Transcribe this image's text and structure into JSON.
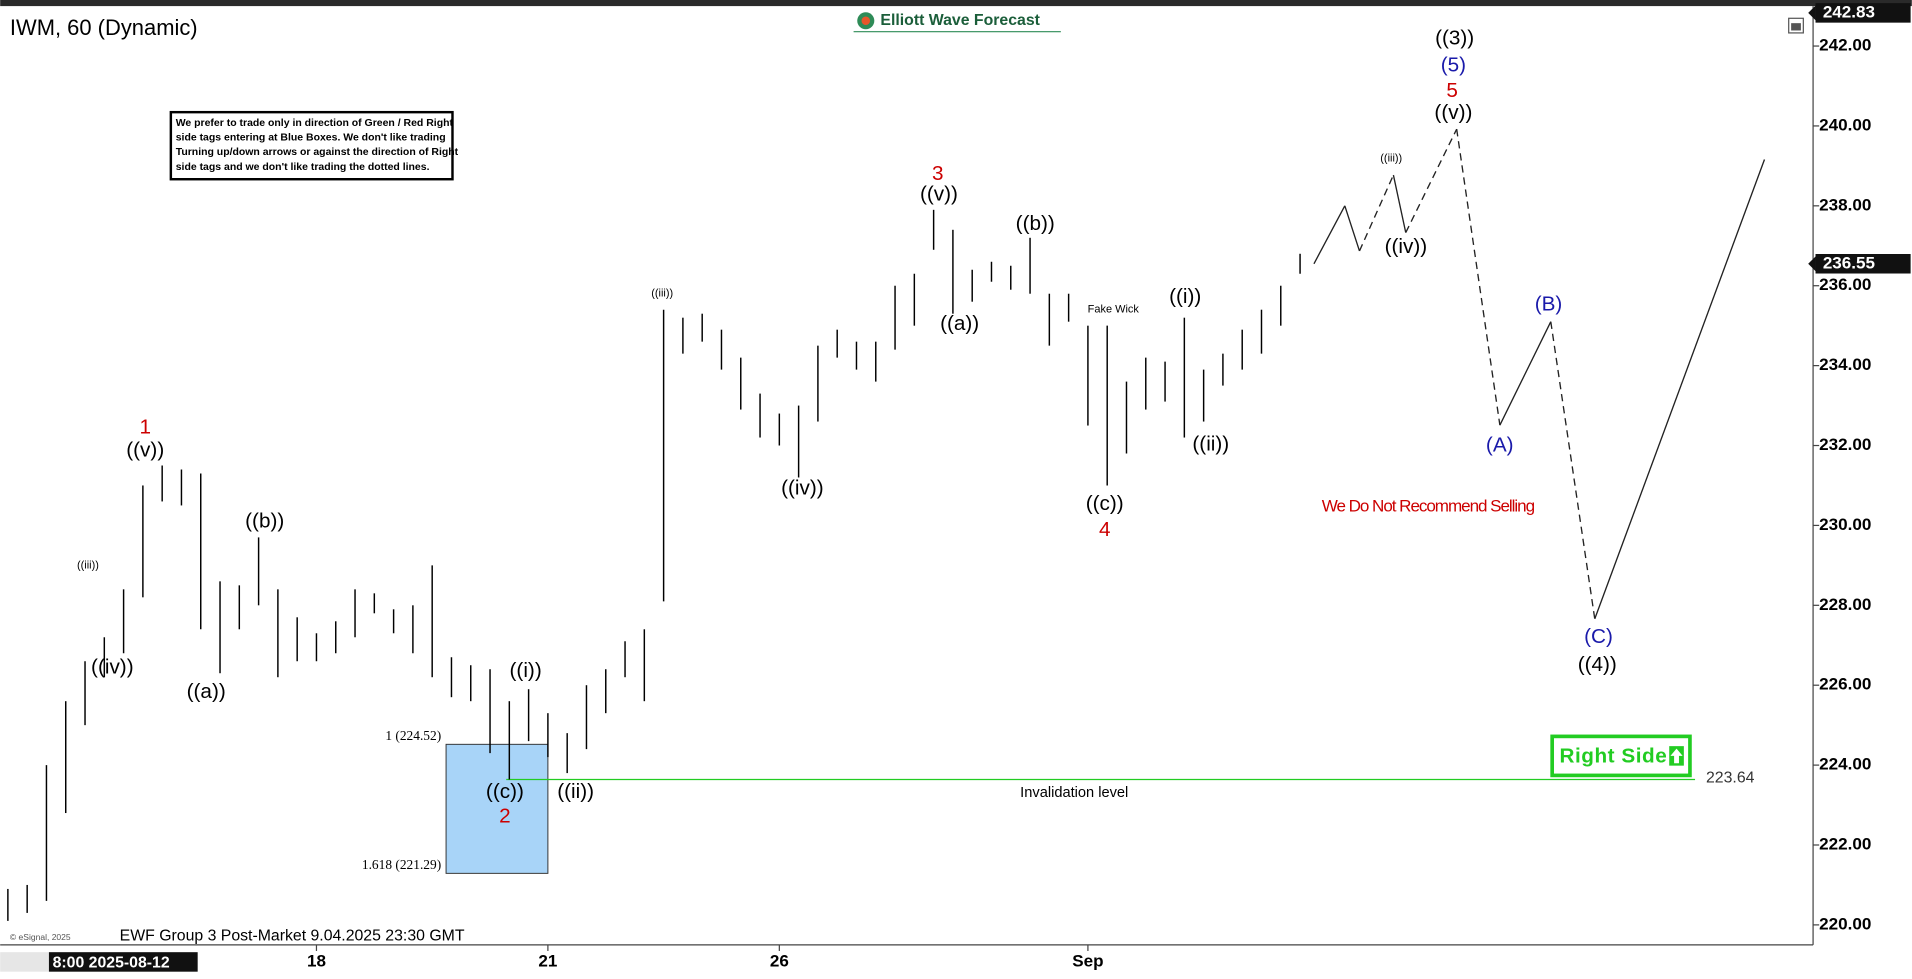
{
  "chart_data": {
    "type": "ohlc",
    "title": "IWM, 60 (Dynamic)",
    "brand": "Elliott Wave Forecast",
    "footer": "EWF Group 3 Post-Market 9.04.2025 23:30 GMT",
    "copyright": "© eSignal, 2025",
    "start_label": "8:00 2025-08-12",
    "note": [
      "We prefer to trade only in direction of Green / Red Right",
      "side tags entering at Blue Boxes. We don't like trading",
      "Turning up/down arrows or against the direction of Right",
      "side tags and we don't like trading the dotted lines."
    ],
    "color": "#000000",
    "x": [
      0,
      0.25,
      0.5,
      0.75,
      1,
      1.25,
      1.5,
      1.75,
      2,
      2.25,
      2.5,
      2.75,
      3,
      3.25,
      3.5,
      3.75,
      4,
      4.25,
      4.5,
      4.75,
      5,
      5.25,
      5.5,
      5.75,
      6,
      6.25,
      6.5,
      6.75,
      7,
      7.25,
      7.5,
      7.75,
      8,
      8.25,
      8.5,
      8.75,
      9,
      9.25,
      9.5,
      9.75,
      10,
      10.25,
      10.5,
      10.75,
      11,
      11.25,
      11.5,
      11.75,
      12,
      12.25,
      12.5,
      12.75,
      13,
      13.25,
      13.5,
      13.75,
      14,
      14.25,
      14.5,
      14.75,
      15,
      15.25,
      15.5,
      15.75,
      16,
      16.25,
      16.5,
      16.75
    ],
    "highs": [
      220.9,
      221.0,
      224.0,
      225.6,
      226.6,
      227.2,
      228.4,
      231.0,
      231.5,
      231.4,
      231.3,
      228.6,
      228.5,
      229.7,
      228.4,
      227.7,
      227.3,
      227.6,
      228.4,
      228.3,
      227.9,
      228.0,
      229.0,
      226.7,
      226.5,
      226.4,
      225.6,
      225.9,
      225.3,
      224.8,
      226.0,
      226.4,
      227.1,
      227.4,
      235.4,
      235.2,
      235.3,
      234.9,
      234.2,
      233.3,
      232.8,
      233.0,
      234.5,
      234.9,
      234.6,
      234.6,
      236.0,
      236.3,
      237.9,
      237.4,
      236.4,
      236.6,
      236.5,
      237.2,
      235.8,
      235.8,
      235.0,
      235.0,
      233.6,
      234.2,
      234.1,
      235.2,
      233.9,
      234.3,
      234.9,
      235.4,
      236.0,
      236.8
    ],
    "lows": [
      220.1,
      220.3,
      220.6,
      222.8,
      225.0,
      226.2,
      226.8,
      228.2,
      230.6,
      230.5,
      227.4,
      226.3,
      227.4,
      228.0,
      226.2,
      226.6,
      226.6,
      226.8,
      227.2,
      227.8,
      227.3,
      226.8,
      226.2,
      225.7,
      225.6,
      224.3,
      223.64,
      224.6,
      224.2,
      223.8,
      224.4,
      225.3,
      226.2,
      225.6,
      228.1,
      234.3,
      234.6,
      233.9,
      232.9,
      232.2,
      232.0,
      231.2,
      232.6,
      234.2,
      233.9,
      233.6,
      234.4,
      235.0,
      236.9,
      235.3,
      235.6,
      236.1,
      235.9,
      235.8,
      234.5,
      235.1,
      232.5,
      231.0,
      231.8,
      232.9,
      233.1,
      232.2,
      232.6,
      233.5,
      233.9,
      234.3,
      235.0,
      236.3
    ],
    "xlim": [
      -0.1,
      23.4
    ],
    "xticks": [
      {
        "value": 4,
        "label": "18"
      },
      {
        "value": 7,
        "label": "21"
      },
      {
        "value": 10,
        "label": "26"
      },
      {
        "value": 14,
        "label": "Sep"
      }
    ],
    "ylim": [
      219.5,
      243
    ],
    "yticks": [
      {
        "value": 220,
        "label": "220.00"
      },
      {
        "value": 222,
        "label": "222.00"
      },
      {
        "value": 224,
        "label": "224.00"
      },
      {
        "value": 226,
        "label": "226.00"
      },
      {
        "value": 228,
        "label": "228.00"
      },
      {
        "value": 230,
        "label": "230.00"
      },
      {
        "value": 232,
        "label": "232.00"
      },
      {
        "value": 234,
        "label": "234.00"
      },
      {
        "value": 236,
        "label": "236.00"
      },
      {
        "value": 238,
        "label": "238.00"
      },
      {
        "value": 240,
        "label": "240.00"
      },
      {
        "value": 242,
        "label": "242.00"
      }
    ],
    "last_price": {
      "value": 236.55,
      "label": "236.55"
    },
    "top_price": {
      "value": 242.83,
      "label": "242.83"
    },
    "projection": {
      "x": [
        16.93,
        17.33,
        17.52,
        17.96,
        18.12,
        18.78,
        19.34,
        20.0,
        20.57,
        22.77
      ],
      "y": [
        236.55,
        238.0,
        236.87,
        238.77,
        237.33,
        239.92,
        232.51,
        235.1,
        227.66,
        239.16
      ],
      "dashed": [
        false,
        false,
        true,
        false,
        true,
        true,
        false,
        true,
        false
      ],
      "color": "#222222"
    },
    "fib_box": {
      "x": [
        5.68,
        7.0
      ],
      "top": 224.52,
      "bottom": 221.29,
      "top_label": "1 (224.52)",
      "bottom_label": "1.618 (221.29)",
      "color": "#a8d4f8"
    },
    "invalidation": {
      "value": 223.64,
      "label": "223.64",
      "x": [
        6.46,
        21.87
      ],
      "text": "Invalidation level",
      "color": "#22cc22"
    },
    "right_side": "Right Side",
    "recommendation": "We Do Not Recommend Selling",
    "wave_labels": [
      {
        "text": "1",
        "color": "#cc0000"
      },
      {
        "text": "((v))",
        "color": "#000000"
      },
      {
        "text": "((iii))",
        "color": "#000000"
      },
      {
        "text": "((iv))",
        "color": "#000000"
      },
      {
        "text": "((a))",
        "color": "#000000"
      },
      {
        "text": "((b))",
        "color": "#000000"
      },
      {
        "text": "((i))",
        "color": "#000000"
      },
      {
        "text": "((c))",
        "color": "#000000"
      },
      {
        "text": "2",
        "color": "#cc0000"
      },
      {
        "text": "((ii))",
        "color": "#000000"
      },
      {
        "text": "((iii))",
        "color": "#000000"
      },
      {
        "text": "((iv))",
        "color": "#000000"
      },
      {
        "text": "3",
        "color": "#cc0000"
      },
      {
        "text": "((v))",
        "color": "#000000"
      },
      {
        "text": "((a))",
        "color": "#000000"
      },
      {
        "text": "((b))",
        "color": "#000000"
      },
      {
        "text": "Fake Wick",
        "color": "#000000"
      },
      {
        "text": "((c))",
        "color": "#000000"
      },
      {
        "text": "4",
        "color": "#cc0000"
      },
      {
        "text": "((i))",
        "color": "#000000"
      },
      {
        "text": "((ii))",
        "color": "#000000"
      },
      {
        "text": "((iii))",
        "color": "#000000"
      },
      {
        "text": "((iv))",
        "color": "#000000"
      },
      {
        "text": "((3))",
        "color": "#000000"
      },
      {
        "text": "(5)",
        "color": "#1a1aaa"
      },
      {
        "text": "5",
        "color": "#cc0000"
      },
      {
        "text": "((v))",
        "color": "#000000"
      },
      {
        "text": "(A)",
        "color": "#1a1aaa"
      },
      {
        "text": "(B)",
        "color": "#1a1aaa"
      },
      {
        "text": "(C)",
        "color": "#1a1aaa"
      },
      {
        "text": "((4))",
        "color": "#000000"
      }
    ]
  }
}
